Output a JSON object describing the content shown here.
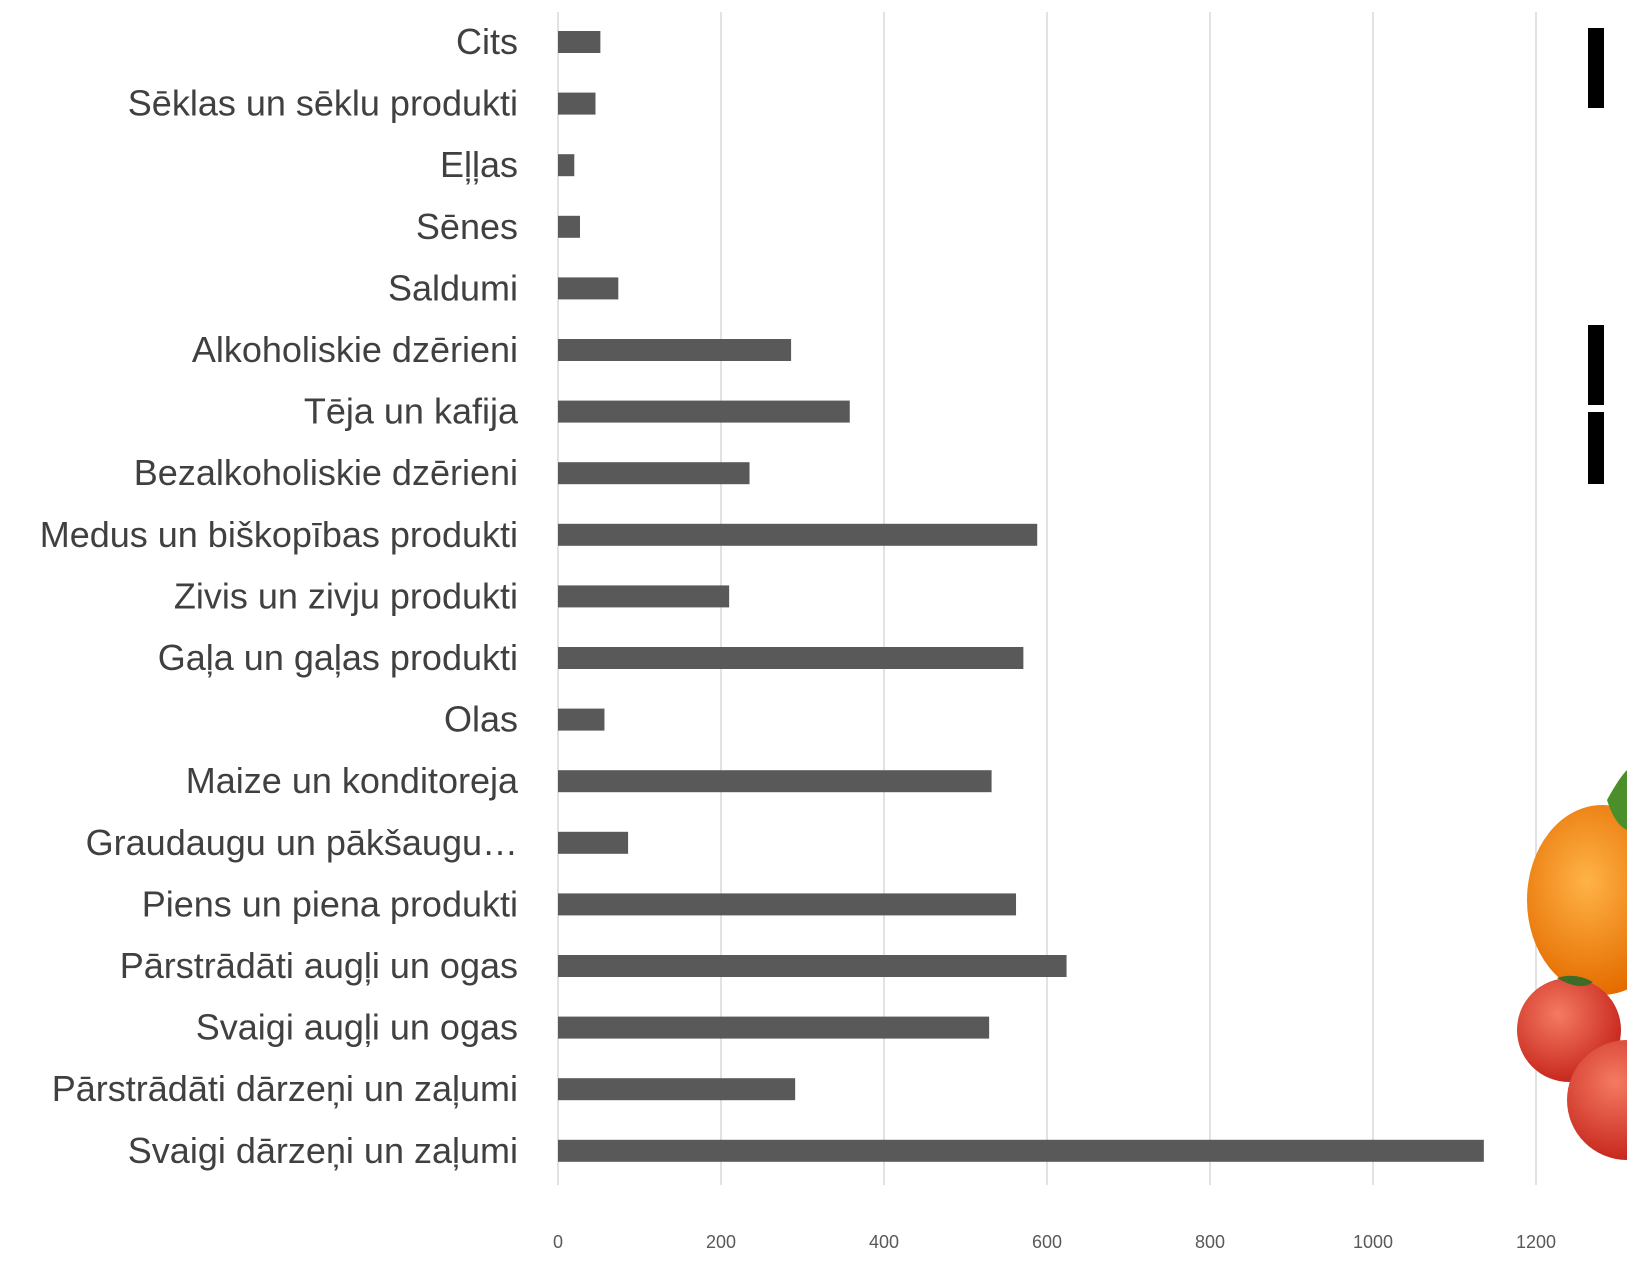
{
  "chart_data": {
    "type": "bar",
    "orientation": "horizontal",
    "categories": [
      "Cits",
      "Sēklas un sēklu produkti",
      "Eļļas",
      "Sēnes",
      "Saldumi",
      "Alkoholiskie dzērieni",
      "Tēja un kafija",
      "Bezalkoholiskie dzērieni",
      "Medus un biškopības produkti",
      "Zivis un zivju produkti",
      "Gaļa un gaļas produkti",
      "Olas",
      "Maize un konditoreja",
      "Graudaugu un pākšaugu…",
      "Piens un piena produkti",
      "Pārstrādāti augļi un ogas",
      "Svaigi augļi un ogas",
      "Pārstrādāti dārzeņi un zaļumi",
      "Svaigi dārzeņi un zaļumi"
    ],
    "values": [
      52,
      46,
      20,
      27,
      74,
      286,
      358,
      235,
      588,
      210,
      571,
      57,
      532,
      86,
      562,
      624,
      529,
      291,
      1136
    ],
    "xlim": [
      0,
      1200
    ],
    "xticks": [
      0,
      200,
      400,
      600,
      800,
      1000,
      1200
    ],
    "title": "",
    "xlabel": "",
    "ylabel": "",
    "grid": "vertical",
    "legend": "none",
    "bar_color": "#595959",
    "grid_color": "#d9d9d9",
    "label_color": "#404040"
  }
}
